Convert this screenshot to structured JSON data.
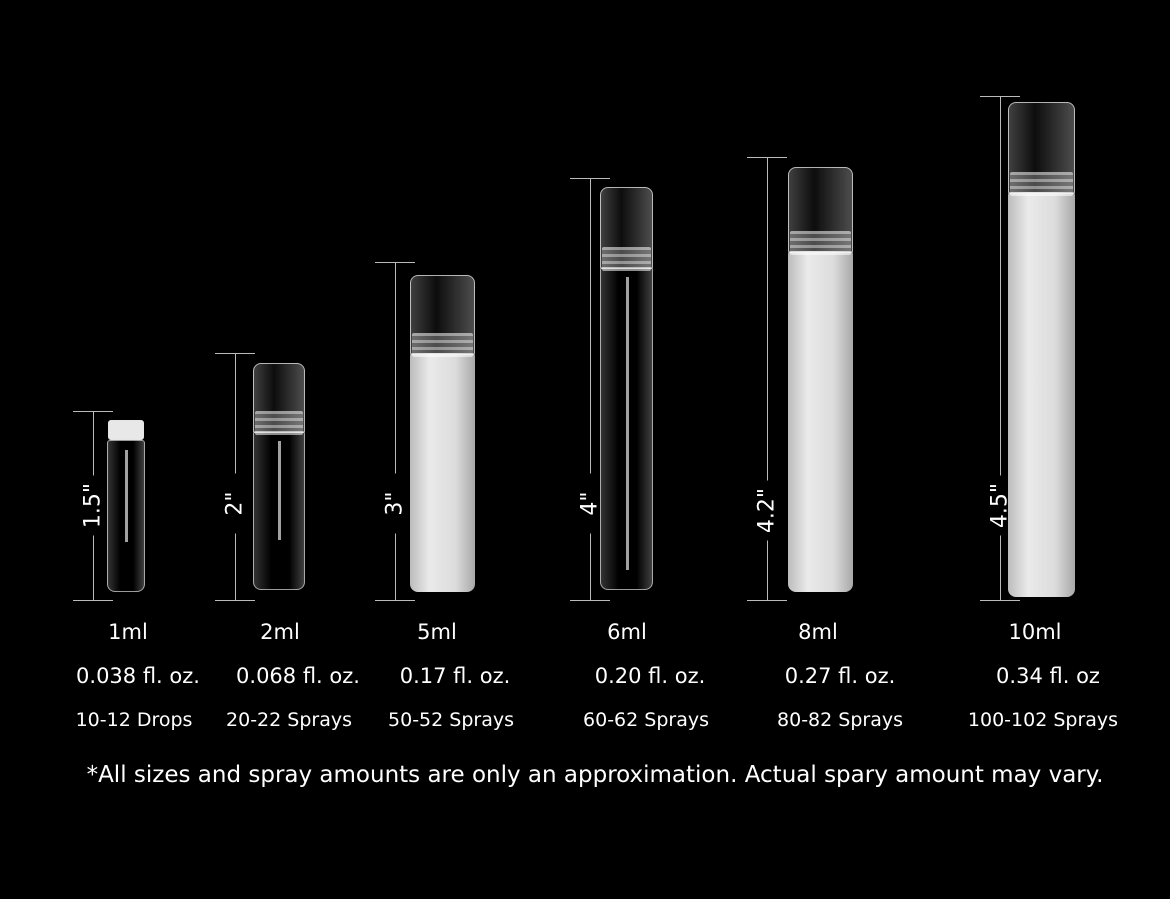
{
  "vials": [
    {
      "height": "1.5\"",
      "volume": "1ml",
      "fl_oz": "0.038 fl. oz.",
      "amount": "10-12 Drops",
      "finish": "clear"
    },
    {
      "height": "2\"",
      "volume": "2ml",
      "fl_oz": "0.068 fl. oz.",
      "amount": "20-22 Sprays",
      "finish": "clear"
    },
    {
      "height": "3\"",
      "volume": "5ml",
      "fl_oz": "0.17 fl. oz.",
      "amount": "50-52 Sprays",
      "finish": "frosted"
    },
    {
      "height": "4\"",
      "volume": "6ml",
      "fl_oz": "0.20 fl. oz.",
      "amount": "60-62 Sprays",
      "finish": "clear"
    },
    {
      "height": "4.2\"",
      "volume": "8ml",
      "fl_oz": "0.27 fl. oz.",
      "amount": "80-82 Sprays",
      "finish": "frosted"
    },
    {
      "height": "4.5\"",
      "volume": "10ml",
      "fl_oz": "0.34 fl. oz",
      "amount": "100-102 Sprays",
      "finish": "frosted"
    }
  ],
  "footnote": "*All sizes and spray amounts are only an approximation. Actual spary amount may vary.",
  "colors": {
    "background": "#000000",
    "text": "#ffffff"
  }
}
